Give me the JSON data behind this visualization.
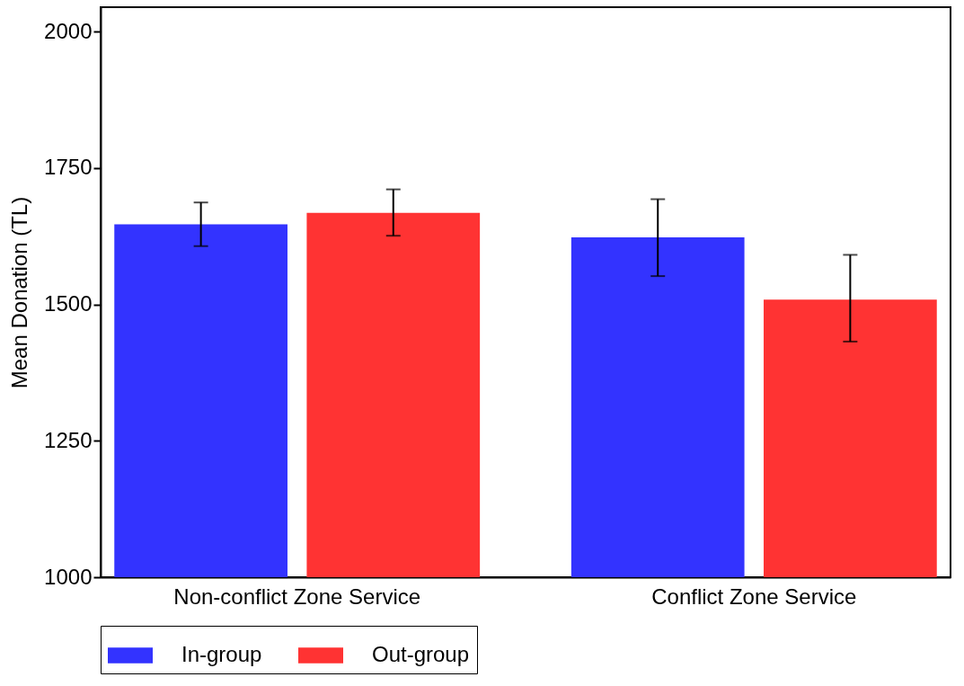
{
  "chart_data": {
    "type": "bar",
    "ylabel": "Mean Donation (TL)",
    "categories": [
      "Non-conflict Zone Service",
      "Conflict Zone Service"
    ],
    "series": [
      {
        "name": "In-group",
        "color": "#3333ff",
        "values": [
          1647,
          1623
        ],
        "errors": [
          [
            1607,
            1687
          ],
          [
            1552,
            1693
          ]
        ]
      },
      {
        "name": "Out-group",
        "color": "#ff3333",
        "values": [
          1668,
          1509
        ],
        "errors": [
          [
            1626,
            1711
          ],
          [
            1432,
            1591
          ]
        ]
      }
    ],
    "ylim": [
      1000,
      2045
    ],
    "yticks": [
      1000,
      1250,
      1500,
      1750,
      2000
    ],
    "grid": false,
    "legend": "bottom"
  }
}
